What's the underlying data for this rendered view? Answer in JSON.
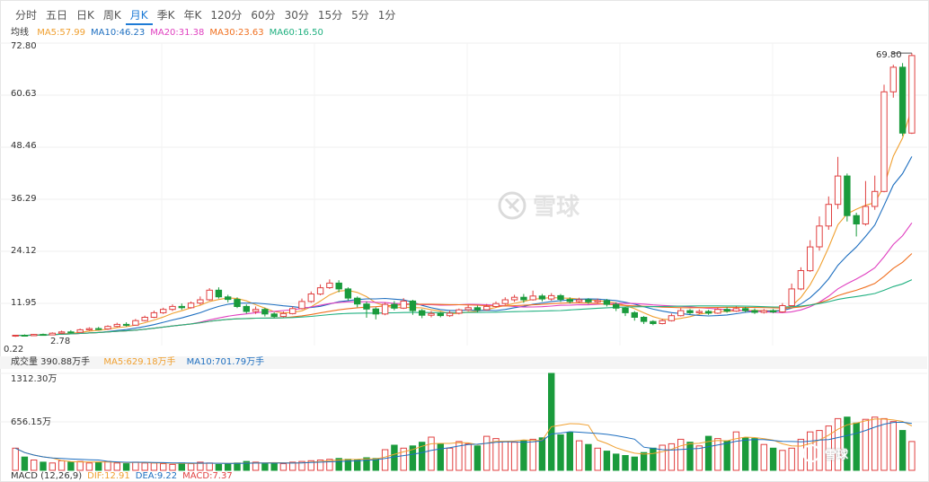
{
  "tabs": [
    {
      "label": "分时",
      "active": false
    },
    {
      "label": "五日",
      "active": false
    },
    {
      "label": "日K",
      "active": false
    },
    {
      "label": "周K",
      "active": false
    },
    {
      "label": "月K",
      "active": true
    },
    {
      "label": "季K",
      "active": false
    },
    {
      "label": "年K",
      "active": false
    },
    {
      "label": "120分",
      "active": false
    },
    {
      "label": "60分",
      "active": false
    },
    {
      "label": "30分",
      "active": false
    },
    {
      "label": "15分",
      "active": false
    },
    {
      "label": "5分",
      "active": false
    },
    {
      "label": "1分",
      "active": false
    }
  ],
  "ma_legend": {
    "title": "均线",
    "items": [
      {
        "label": "MA5:57.99",
        "color": "#f0a030"
      },
      {
        "label": "MA10:46.23",
        "color": "#1e6fc0"
      },
      {
        "label": "MA20:31.38",
        "color": "#e040c0"
      },
      {
        "label": "MA30:23.63",
        "color": "#f07020"
      },
      {
        "label": "MA60:16.50",
        "color": "#20b080"
      }
    ]
  },
  "price_axis": [
    "72.80",
    "60.63",
    "48.46",
    "36.29",
    "24.12",
    "11.95"
  ],
  "price_high_label": "69.80",
  "price_low_label": "2.78",
  "price_low_value": "0.22",
  "volume_legend": {
    "title": "成交量 390.88万手",
    "items": [
      {
        "label": "MA5:629.18万手",
        "color": "#f0a030"
      },
      {
        "label": "MA10:701.79万手",
        "color": "#1e6fc0"
      }
    ]
  },
  "volume_axis": [
    "1312.30万",
    "656.15万"
  ],
  "macd_legend": {
    "items": [
      {
        "label": "MACD (12,26,9)",
        "color": "#333333"
      },
      {
        "label": "DIF:12.91",
        "color": "#f0a030"
      },
      {
        "label": "DEA:9.22",
        "color": "#1e6fc0"
      },
      {
        "label": "MACD:7.37",
        "color": "#e04040"
      }
    ]
  },
  "watermark": "雪球",
  "colors": {
    "up": "#e04040",
    "down": "#1a9b3c",
    "active_tab": "#1e7bd6"
  },
  "chart_data": {
    "type": "candlestick",
    "price_range": [
      0.22,
      72.8
    ],
    "volume_max": 1312.3,
    "candles": [
      [
        2.5,
        2.7,
        2.3,
        2.8
      ],
      [
        2.7,
        2.6,
        2.4,
        2.9
      ],
      [
        2.6,
        2.9,
        2.5,
        3.0
      ],
      [
        2.9,
        2.8,
        2.6,
        3.1
      ],
      [
        2.8,
        3.2,
        2.7,
        3.4
      ],
      [
        3.2,
        3.5,
        3.0,
        3.8
      ],
      [
        3.5,
        3.4,
        3.1,
        3.9
      ],
      [
        3.4,
        4.0,
        3.3,
        4.3
      ],
      [
        4.0,
        4.3,
        3.8,
        4.6
      ],
      [
        4.3,
        4.2,
        3.9,
        4.7
      ],
      [
        4.2,
        4.8,
        4.0,
        5.1
      ],
      [
        4.8,
        5.3,
        4.6,
        5.7
      ],
      [
        5.3,
        5.1,
        4.8,
        5.8
      ],
      [
        5.1,
        6.2,
        5.0,
        6.6
      ],
      [
        6.2,
        7.0,
        6.0,
        7.4
      ],
      [
        7.0,
        8.1,
        6.8,
        8.6
      ],
      [
        8.1,
        8.9,
        7.8,
        9.3
      ],
      [
        8.9,
        9.6,
        8.5,
        10.1
      ],
      [
        9.6,
        9.3,
        8.8,
        10.3
      ],
      [
        9.3,
        10.4,
        9.1,
        10.8
      ],
      [
        10.4,
        11.2,
        10.0,
        12.0
      ],
      [
        11.2,
        13.5,
        11.0,
        14.0
      ],
      [
        13.5,
        11.9,
        11.5,
        14.2
      ],
      [
        11.9,
        11.3,
        10.6,
        12.4
      ],
      [
        11.3,
        9.6,
        9.2,
        11.8
      ],
      [
        9.6,
        8.4,
        7.9,
        10.1
      ],
      [
        8.4,
        8.9,
        7.8,
        9.6
      ],
      [
        8.9,
        7.8,
        7.2,
        9.3
      ],
      [
        7.8,
        7.2,
        6.8,
        8.2
      ],
      [
        7.2,
        7.9,
        7.0,
        8.4
      ],
      [
        7.9,
        9.1,
        7.7,
        9.6
      ],
      [
        9.1,
        10.8,
        8.9,
        11.5
      ],
      [
        10.8,
        12.6,
        10.5,
        13.2
      ],
      [
        12.6,
        14.1,
        12.3,
        14.9
      ],
      [
        14.1,
        15.2,
        13.8,
        16.1
      ],
      [
        15.2,
        13.8,
        13.0,
        15.9
      ],
      [
        13.8,
        11.6,
        11.0,
        14.2
      ],
      [
        11.6,
        10.2,
        9.4,
        12.0
      ],
      [
        10.2,
        9.0,
        6.9,
        10.8
      ],
      [
        9.0,
        7.8,
        6.5,
        9.4
      ],
      [
        7.8,
        10.1,
        7.5,
        10.6
      ],
      [
        10.1,
        9.2,
        8.7,
        10.9
      ],
      [
        9.2,
        10.9,
        9.0,
        11.6
      ],
      [
        10.9,
        8.6,
        7.6,
        11.2
      ],
      [
        8.6,
        7.5,
        6.8,
        9.0
      ],
      [
        7.5,
        7.9,
        7.0,
        8.5
      ],
      [
        7.9,
        7.4,
        7.0,
        8.3
      ],
      [
        7.4,
        8.0,
        7.1,
        8.6
      ],
      [
        8.0,
        8.8,
        7.7,
        9.1
      ],
      [
        8.8,
        9.3,
        8.5,
        9.9
      ],
      [
        9.3,
        8.8,
        8.2,
        9.8
      ],
      [
        8.8,
        9.6,
        8.6,
        10.2
      ],
      [
        9.6,
        10.3,
        9.3,
        10.8
      ],
      [
        10.3,
        11.2,
        10.0,
        11.8
      ],
      [
        11.2,
        11.8,
        10.7,
        12.4
      ],
      [
        11.8,
        11.2,
        10.5,
        12.6
      ],
      [
        11.2,
        12.1,
        11.0,
        13.4
      ],
      [
        12.1,
        11.4,
        10.8,
        12.6
      ],
      [
        11.4,
        12.2,
        11.0,
        12.8
      ],
      [
        12.2,
        11.3,
        10.7,
        12.6
      ],
      [
        11.3,
        10.8,
        10.3,
        11.8
      ],
      [
        10.8,
        11.2,
        10.5,
        11.7
      ],
      [
        11.2,
        10.7,
        10.2,
        11.6
      ],
      [
        10.7,
        11.0,
        10.4,
        11.5
      ],
      [
        11.0,
        10.1,
        9.6,
        11.4
      ],
      [
        10.1,
        9.2,
        8.5,
        10.6
      ],
      [
        9.2,
        8.1,
        7.3,
        9.6
      ],
      [
        8.1,
        7.0,
        6.2,
        8.5
      ],
      [
        7.0,
        6.0,
        5.4,
        7.3
      ],
      [
        6.0,
        5.5,
        5.1,
        6.3
      ],
      [
        5.5,
        6.2,
        5.3,
        6.6
      ],
      [
        6.2,
        7.4,
        6.0,
        7.9
      ],
      [
        7.4,
        8.6,
        7.2,
        9.2
      ],
      [
        8.6,
        8.1,
        7.7,
        9.0
      ],
      [
        8.1,
        8.4,
        7.8,
        8.9
      ],
      [
        8.4,
        8.0,
        7.6,
        8.8
      ],
      [
        8.0,
        8.9,
        7.8,
        9.3
      ],
      [
        8.9,
        8.5,
        8.1,
        9.4
      ],
      [
        8.5,
        9.1,
        8.3,
        9.6
      ],
      [
        9.1,
        8.6,
        8.2,
        9.5
      ],
      [
        8.6,
        8.2,
        7.8,
        9.1
      ],
      [
        8.2,
        8.6,
        7.9,
        9.0
      ],
      [
        8.6,
        8.3,
        8.0,
        9.0
      ],
      [
        8.3,
        9.8,
        8.1,
        10.4
      ],
      [
        9.8,
        13.8,
        9.6,
        15.1
      ],
      [
        13.8,
        18.2,
        13.5,
        19.0
      ],
      [
        18.2,
        23.9,
        17.9,
        25.5
      ],
      [
        23.9,
        28.9,
        23.0,
        31.2
      ],
      [
        28.9,
        34.1,
        28.0,
        36.0
      ],
      [
        34.1,
        40.9,
        33.0,
        45.5
      ],
      [
        40.9,
        31.4,
        30.0,
        41.5
      ],
      [
        31.4,
        29.4,
        26.4,
        32.1
      ],
      [
        29.4,
        33.6,
        29.0,
        39.7
      ],
      [
        33.6,
        37.2,
        32.8,
        41.0
      ],
      [
        37.2,
        61.1,
        37.0,
        62.8
      ],
      [
        61.1,
        67.0,
        59.7,
        67.6
      ],
      [
        67.0,
        51.2,
        50.5,
        68.0
      ],
      [
        51.2,
        69.8,
        51.0,
        70.4
      ]
    ],
    "volumes": [
      300,
      180,
      140,
      110,
      100,
      130,
      110,
      120,
      100,
      110,
      120,
      100,
      90,
      110,
      100,
      100,
      90,
      80,
      100,
      90,
      110,
      100,
      80,
      90,
      100,
      120,
      110,
      90,
      100,
      90,
      110,
      120,
      130,
      140,
      150,
      160,
      150,
      140,
      170,
      160,
      280,
      340,
      300,
      330,
      380,
      450,
      360,
      300,
      390,
      360,
      330,
      460,
      430,
      390,
      380,
      400,
      420,
      440,
      1312,
      480,
      510,
      400,
      350,
      300,
      260,
      220,
      200,
      180,
      240,
      300,
      340,
      360,
      420,
      380,
      330,
      460,
      430,
      400,
      520,
      440,
      430,
      350,
      300,
      270,
      300,
      420,
      520,
      540,
      600,
      700,
      720,
      640,
      690,
      720,
      700,
      660,
      540,
      390
    ],
    "volume_up": [
      true,
      false,
      true,
      false,
      true,
      true,
      false,
      true,
      true,
      false,
      true,
      true,
      false,
      true,
      true,
      true,
      true,
      true,
      false,
      true,
      true,
      true,
      false,
      false,
      false,
      false,
      true,
      false,
      false,
      true,
      true,
      true,
      true,
      true,
      true,
      false,
      false,
      false,
      false,
      false,
      true,
      false,
      true,
      false,
      false,
      true,
      false,
      true,
      true,
      true,
      false,
      true,
      true,
      true,
      true,
      false,
      true,
      false,
      false,
      false,
      false,
      true,
      false,
      true,
      false,
      false,
      false,
      false,
      false,
      false,
      true,
      true,
      true,
      false,
      true,
      false,
      true,
      false,
      true,
      false,
      false,
      true,
      false,
      true,
      true,
      true,
      true,
      true,
      true,
      true,
      false,
      false,
      true,
      true,
      true,
      true,
      false,
      true
    ]
  }
}
